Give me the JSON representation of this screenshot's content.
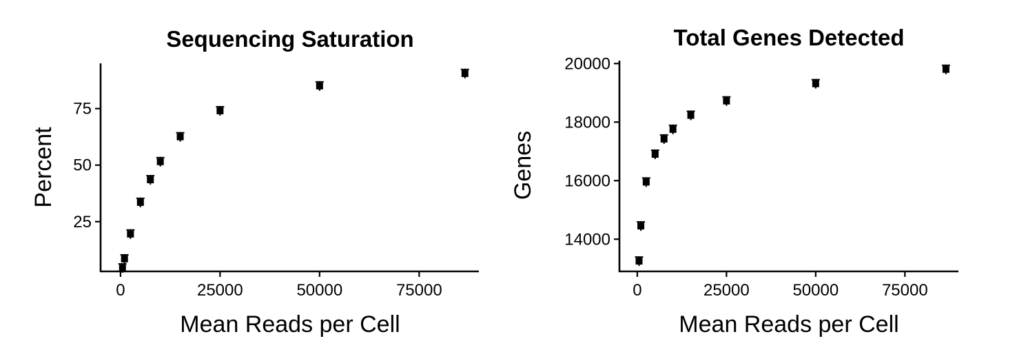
{
  "chart_data": [
    {
      "type": "scatter",
      "title": "Sequencing Saturation",
      "xlabel": "Mean Reads per Cell",
      "ylabel": "Percent",
      "xlim": [
        -5000,
        90000
      ],
      "ylim": [
        3,
        95
      ],
      "xticks": [
        0,
        25000,
        50000,
        75000
      ],
      "yticks": [
        25,
        50,
        75
      ],
      "xtick_labels": [
        "0",
        "25000",
        "50000",
        "75000"
      ],
      "ytick_labels": [
        "25",
        "50",
        "75"
      ],
      "grid": false,
      "legend": "none",
      "x": [
        500,
        1000,
        2500,
        5000,
        7500,
        10000,
        15000,
        25000,
        50000,
        86500
      ],
      "y": [
        4.5,
        8.5,
        19.5,
        33.5,
        43.5,
        51.5,
        62.5,
        74,
        85,
        90.5
      ]
    },
    {
      "type": "scatter",
      "title": "Total Genes Detected",
      "xlabel": "Mean Reads per Cell",
      "ylabel": "Genes",
      "xlim": [
        -5000,
        90000
      ],
      "ylim": [
        12900,
        20100
      ],
      "xticks": [
        0,
        25000,
        50000,
        75000
      ],
      "yticks": [
        14000,
        16000,
        18000,
        20000
      ],
      "xtick_labels": [
        "0",
        "25000",
        "50000",
        "75000"
      ],
      "ytick_labels": [
        "14000",
        "16000",
        "18000",
        "20000"
      ],
      "grid": false,
      "legend": "none",
      "x": [
        500,
        1000,
        2500,
        5000,
        7500,
        10000,
        15000,
        25000,
        50000,
        86500
      ],
      "y": [
        13250,
        14450,
        15950,
        16900,
        17420,
        17750,
        18230,
        18720,
        19310,
        19800
      ]
    }
  ]
}
